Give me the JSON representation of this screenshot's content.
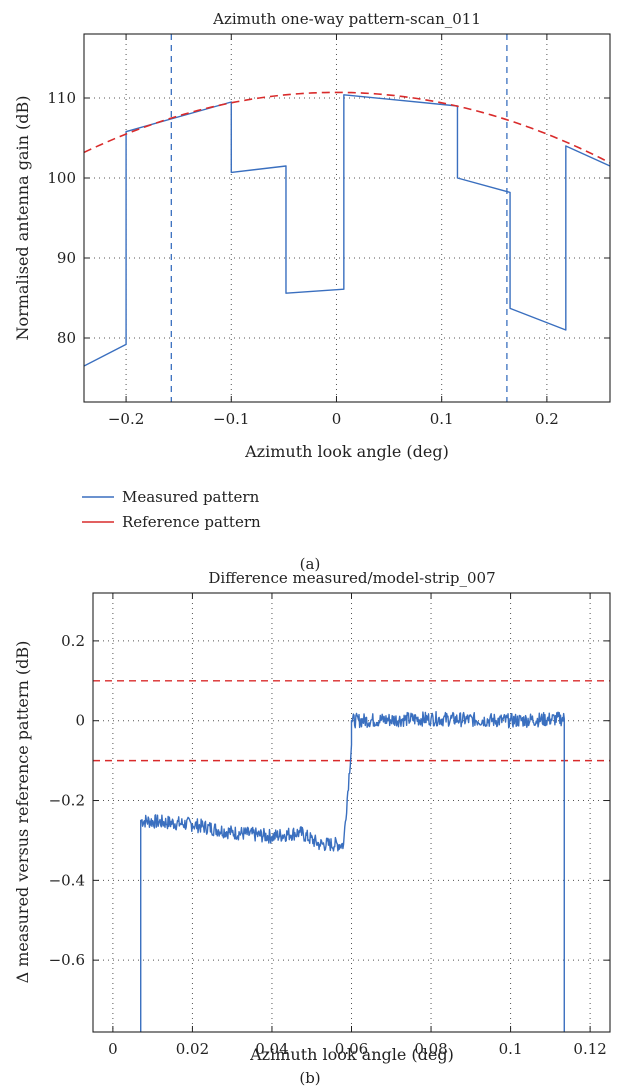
{
  "chart_data": [
    {
      "type": "line",
      "title": "Azimuth one-way pattern-scan_011",
      "xlabel": "Azimuth look angle (deg)",
      "ylabel": "Normalised antenna gain (dB)",
      "xlim": [
        -0.24,
        0.26
      ],
      "ylim": [
        72,
        118
      ],
      "xticks": [
        -0.2,
        -0.1,
        0,
        0.1,
        0.2
      ],
      "xtick_labels": [
        "−0.2",
        "−0.1",
        "0",
        "0.1",
        "0.2"
      ],
      "yticks": [
        80,
        90,
        100,
        110
      ],
      "ytick_labels": [
        "80",
        "90",
        "100",
        "110"
      ],
      "grid": true,
      "legend_position": "below plot",
      "caption": "(a)",
      "series": [
        {
          "name": "Measured pattern",
          "color": "#3a6fbf",
          "style": "solid",
          "points": [
            [
              -0.24,
              76.5
            ],
            [
              -0.2,
              79.2
            ],
            [
              -0.2,
              105.8
            ],
            [
              -0.1,
              109.5
            ],
            [
              -0.1,
              100.7
            ],
            [
              -0.048,
              101.5
            ],
            [
              -0.048,
              85.6
            ],
            [
              0.007,
              86.1
            ],
            [
              0.007,
              110.4
            ],
            [
              0.115,
              109.0
            ],
            [
              0.115,
              100.0
            ],
            [
              0.165,
              98.2
            ],
            [
              0.165,
              83.7
            ],
            [
              0.218,
              81.0
            ],
            [
              0.218,
              104.0
            ],
            [
              0.26,
              101.5
            ]
          ]
        },
        {
          "name": "Reference pattern",
          "color": "#d92b2b",
          "style": "dashed",
          "curve": "parabola",
          "peak_x": 0.0,
          "peak_y": 110.7,
          "edge_y": 103.2
        }
      ],
      "vlines": [
        -0.157,
        0.162
      ]
    },
    {
      "type": "line",
      "title": "Difference measured/model-strip_007",
      "xlabel": "Azimuth look angle (deg)",
      "ylabel": "Δ measured versus reference pattern (dB)",
      "xlim": [
        -0.005,
        0.125
      ],
      "ylim": [
        -0.78,
        0.32
      ],
      "xticks": [
        0,
        0.02,
        0.04,
        0.06,
        0.08,
        0.1,
        0.12
      ],
      "xtick_labels": [
        "0",
        "0.02",
        "0.04",
        "0.06",
        "0.08",
        "0.1",
        "0.12"
      ],
      "yticks": [
        -0.6,
        -0.4,
        -0.2,
        0,
        0.2
      ],
      "ytick_labels": [
        "−0.6",
        "−0.4",
        "−0.2",
        "0",
        "0.2"
      ],
      "grid": true,
      "caption": "(b)",
      "series": [
        {
          "color": "#3a6fbf",
          "style": "solid",
          "points": [
            [
              0.007,
              -0.78
            ],
            [
              0.007,
              -0.25
            ],
            [
              0.02,
              -0.26
            ],
            [
              0.03,
              -0.28
            ],
            [
              0.04,
              -0.29
            ],
            [
              0.047,
              -0.28
            ],
            [
              0.052,
              -0.31
            ],
            [
              0.058,
              -0.31
            ],
            [
              0.06,
              -0.06
            ],
            [
              0.06,
              0.0
            ],
            [
              0.08,
              0.005
            ],
            [
              0.1,
              0.0
            ],
            [
              0.1135,
              0.005
            ],
            [
              0.1135,
              -0.78
            ]
          ],
          "noise": 0.018
        }
      ],
      "hlines": [
        0.1,
        -0.1
      ]
    }
  ]
}
